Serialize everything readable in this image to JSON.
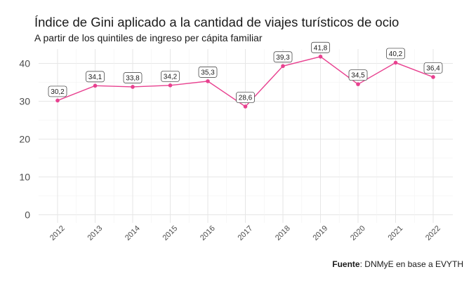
{
  "chart_data": {
    "type": "line",
    "title": "Índice de Gini aplicado a la cantidad de viajes turísticos de ocio",
    "subtitle": "A partir de los quintiles de ingreso per cápita familiar",
    "source_label": "Fuente",
    "source_text": ": DNMyE en base a EVYTH",
    "x": [
      "2012",
      "2013",
      "2014",
      "2015",
      "2016",
      "2017",
      "2018",
      "2019",
      "2020",
      "2021",
      "2022"
    ],
    "values": [
      30.2,
      34.1,
      33.8,
      34.2,
      35.3,
      28.6,
      39.3,
      41.8,
      34.5,
      40.2,
      36.4
    ],
    "data_labels": [
      "30,2",
      "34,1",
      "33,8",
      "34,2",
      "35,3",
      "28,6",
      "39,3",
      "41,8",
      "34,5",
      "40,2",
      "36,4"
    ],
    "y_ticks": [
      "0",
      "10",
      "20",
      "30",
      "40"
    ],
    "ylim": [
      0,
      44
    ],
    "grid": true,
    "line_color": "#e8408f",
    "xlabel": "",
    "ylabel": ""
  }
}
